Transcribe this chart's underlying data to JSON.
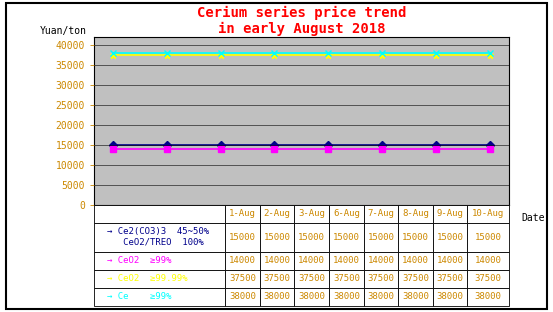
{
  "title": "Cerium series price trend\nin early August 2018",
  "title_color": "red",
  "ylabel": "Yuan/ton",
  "xlabel": "Date",
  "x_labels": [
    "1-Aug",
    "2-Aug",
    "3-Aug",
    "6-Aug",
    "7-Aug",
    "8-Aug",
    "9-Aug",
    "10-Aug"
  ],
  "ylim": [
    0,
    42000
  ],
  "yticks": [
    0,
    5000,
    10000,
    15000,
    20000,
    25000,
    30000,
    35000,
    40000
  ],
  "series": [
    {
      "label_line1": "→ Ce2(CO3)3  45~50%",
      "label_line2": "   CeO2/TREO  100%",
      "values": [
        15000,
        15000,
        15000,
        15000,
        15000,
        15000,
        15000,
        15000
      ],
      "color": "#00008B",
      "marker": "D",
      "linestyle": "-",
      "linewidth": 1.2,
      "markersize": 4
    },
    {
      "label_line1": "→ CeO2  ≥99%",
      "label_line2": "",
      "values": [
        14000,
        14000,
        14000,
        14000,
        14000,
        14000,
        14000,
        14000
      ],
      "color": "magenta",
      "marker": "s",
      "linestyle": "-",
      "linewidth": 1.2,
      "markersize": 4
    },
    {
      "label_line1": "→ CeO2  ≥99.99%",
      "label_line2": "",
      "values": [
        37500,
        37500,
        37500,
        37500,
        37500,
        37500,
        37500,
        37500
      ],
      "color": "yellow",
      "marker": "*",
      "linestyle": "-",
      "linewidth": 1.2,
      "markersize": 5
    },
    {
      "label_line1": "→ Ce    ≥99%",
      "label_line2": "",
      "values": [
        38000,
        38000,
        38000,
        38000,
        38000,
        38000,
        38000,
        38000
      ],
      "color": "cyan",
      "marker": "x",
      "linestyle": "-",
      "linewidth": 1.2,
      "markersize": 4
    }
  ],
  "plot_bg": "#C0C0C0",
  "fig_bg": "white",
  "outer_box_color": "black",
  "grid_color": "black",
  "grid_lw": 0.4,
  "tick_color": "#CC8800",
  "title_fontsize": 10,
  "ylabel_fontsize": 7,
  "xlabel_fontsize": 7,
  "ytick_fontsize": 7,
  "table_fontsize": 6.5
}
